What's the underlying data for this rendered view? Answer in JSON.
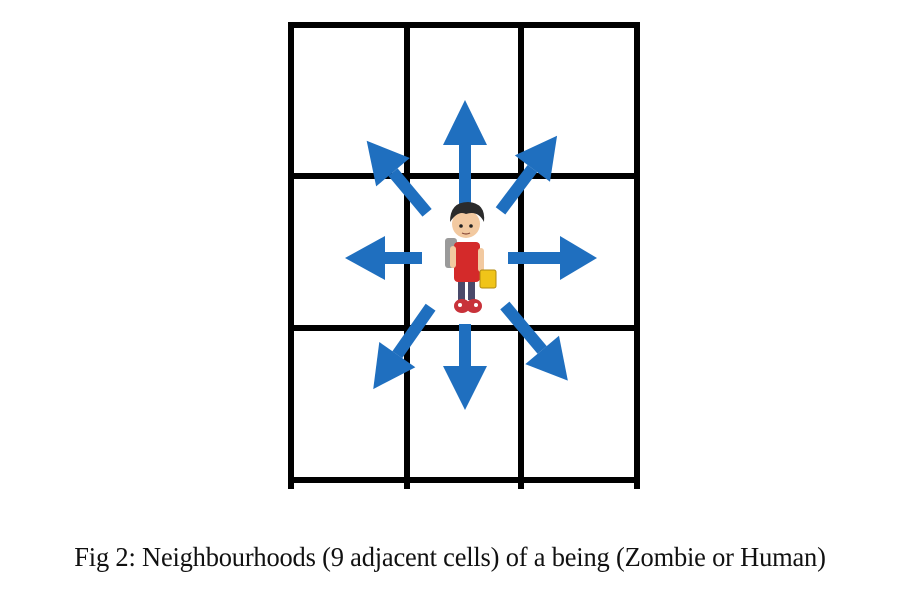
{
  "figure": {
    "caption": "Fig 2: Neighbourhoods (9 adjacent cells) of a being (Zombie or Human)",
    "grid": {
      "rows": 3,
      "cols": 3
    },
    "center_being": "human-character",
    "arrow_directions": [
      "north",
      "north-east",
      "east",
      "south-east",
      "south",
      "south-west",
      "west",
      "north-west"
    ],
    "colors": {
      "grid_line": "#000000",
      "arrow": "#1f6fbf",
      "shirt": "#d42a2a",
      "hair": "#2b2b2b"
    }
  }
}
